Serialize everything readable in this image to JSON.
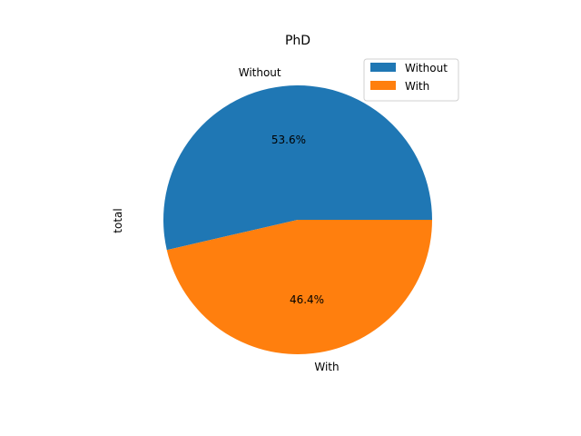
{
  "chart_data": {
    "type": "pie",
    "title": "PhD",
    "ylabel": "total",
    "categories": [
      "Without",
      "With"
    ],
    "values": [
      53.6,
      46.4
    ],
    "percent_labels": [
      "53.6%",
      "46.4%"
    ],
    "colors": [
      "#1f77b4",
      "#ff7f0e"
    ],
    "start_angle": 0,
    "direction": "counterclockwise",
    "legend": {
      "placement": "top-right",
      "entries": [
        "Without",
        "With"
      ]
    }
  }
}
